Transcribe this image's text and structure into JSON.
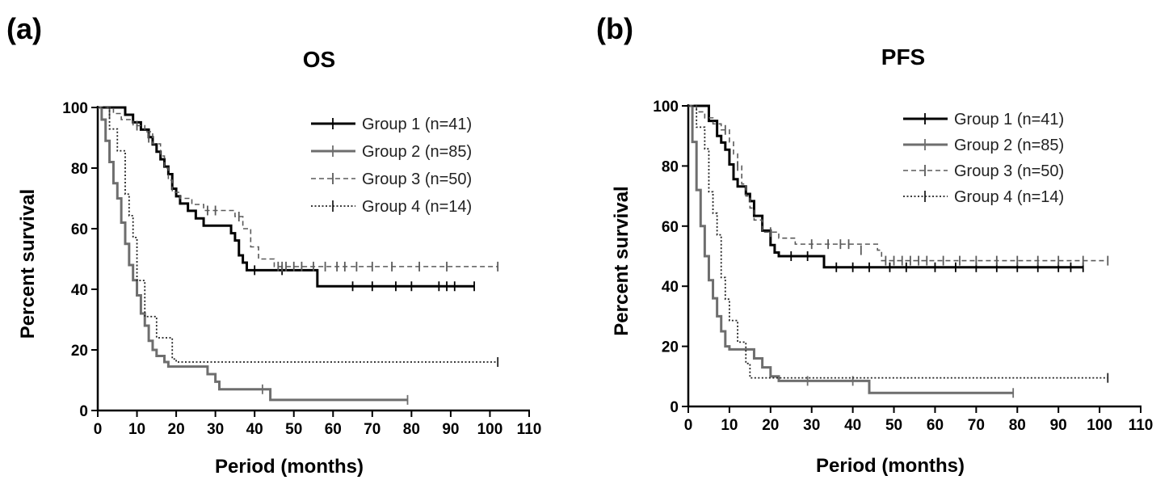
{
  "chart_data": [
    {
      "type": "line",
      "panel_label": "(a)",
      "title": "OS",
      "xlabel": "Period (months)",
      "ylabel": "Percent survival",
      "xlim": [
        0,
        110
      ],
      "ylim": [
        0,
        100
      ],
      "xticks": [
        0,
        10,
        20,
        30,
        40,
        50,
        60,
        70,
        80,
        90,
        100,
        110
      ],
      "yticks": [
        0,
        20,
        40,
        60,
        80,
        100
      ],
      "legend": "top-right",
      "series": [
        {
          "name": "Group 1 (n=41)",
          "color": "#000000",
          "style": "solid-thick",
          "points": [
            [
              0,
              100
            ],
            [
              5,
              100
            ],
            [
              7,
              97.6
            ],
            [
              9,
              95.1
            ],
            [
              11,
              92.7
            ],
            [
              13,
              90.2
            ],
            [
              14,
              87.8
            ],
            [
              15,
              85.4
            ],
            [
              16,
              82.9
            ],
            [
              17,
              80.5
            ],
            [
              18,
              78
            ],
            [
              19,
              73.2
            ],
            [
              20,
              70.7
            ],
            [
              21,
              68.3
            ],
            [
              23,
              65.9
            ],
            [
              25,
              63.4
            ],
            [
              27,
              61
            ],
            [
              33,
              61
            ],
            [
              34,
              58.5
            ],
            [
              35,
              56.1
            ],
            [
              36,
              51.2
            ],
            [
              37,
              48.8
            ],
            [
              38,
              46.3
            ],
            [
              55,
              46.3
            ],
            [
              56,
              41
            ],
            [
              96,
              41
            ]
          ],
          "censored": [
            [
              40,
              46.3
            ],
            [
              47,
              46.3
            ],
            [
              65,
              41
            ],
            [
              70,
              41
            ],
            [
              76,
              41
            ],
            [
              80,
              41
            ],
            [
              87,
              41
            ],
            [
              89,
              41
            ],
            [
              91,
              41
            ],
            [
              96,
              41
            ]
          ]
        },
        {
          "name": "Group 2 (n=85)",
          "color": "#6e6e6e",
          "style": "solid-thick",
          "points": [
            [
              0,
              100
            ],
            [
              1,
              96
            ],
            [
              2,
              89
            ],
            [
              3,
              82
            ],
            [
              4,
              75
            ],
            [
              5,
              70
            ],
            [
              6,
              62
            ],
            [
              7,
              55
            ],
            [
              8,
              48
            ],
            [
              9,
              43
            ],
            [
              10,
              38
            ],
            [
              11,
              32
            ],
            [
              12,
              28
            ],
            [
              13,
              23
            ],
            [
              14,
              20
            ],
            [
              15,
              18
            ],
            [
              17,
              16
            ],
            [
              18,
              14.5
            ],
            [
              27,
              14.5
            ],
            [
              28,
              12
            ],
            [
              30,
              9.5
            ],
            [
              31,
              7
            ],
            [
              43,
              7
            ],
            [
              44,
              3.5
            ],
            [
              79,
              3.5
            ]
          ],
          "censored": [
            [
              42,
              7
            ],
            [
              79,
              3.5
            ]
          ]
        },
        {
          "name": "Group 3 (n=50)",
          "color": "#5a5a5a",
          "style": "dashed",
          "points": [
            [
              0,
              100
            ],
            [
              4,
              98
            ],
            [
              6,
              96
            ],
            [
              9,
              94
            ],
            [
              12,
              92
            ],
            [
              14,
              88
            ],
            [
              16,
              84
            ],
            [
              17,
              80
            ],
            [
              18,
              76
            ],
            [
              19,
              72
            ],
            [
              21,
              70
            ],
            [
              24,
              68
            ],
            [
              27,
              66
            ],
            [
              33,
              66
            ],
            [
              35,
              64
            ],
            [
              37,
              60
            ],
            [
              39,
              54
            ],
            [
              41,
              50
            ],
            [
              45,
              47.5
            ],
            [
              102,
              47.5
            ]
          ],
          "censored": [
            [
              3,
              98
            ],
            [
              10,
              94
            ],
            [
              13,
              90
            ],
            [
              28,
              66
            ],
            [
              30,
              66
            ],
            [
              36,
              64
            ],
            [
              46,
              47.5
            ],
            [
              47,
              47.5
            ],
            [
              48,
              47.5
            ],
            [
              50,
              47.5
            ],
            [
              52,
              47.5
            ],
            [
              55,
              47.5
            ],
            [
              58,
              47.5
            ],
            [
              61,
              47.5
            ],
            [
              63,
              47.5
            ],
            [
              66,
              47.5
            ],
            [
              70,
              47.5
            ],
            [
              75,
              47.5
            ],
            [
              82,
              47.5
            ],
            [
              89,
              47.5
            ],
            [
              102,
              47.5
            ]
          ]
        },
        {
          "name": "Group 4 (n=14)",
          "color": "#222222",
          "style": "dotted",
          "points": [
            [
              0,
              100
            ],
            [
              3,
              92.9
            ],
            [
              5,
              85.7
            ],
            [
              7,
              71.4
            ],
            [
              8,
              64.3
            ],
            [
              9,
              57.1
            ],
            [
              10,
              42.9
            ],
            [
              12,
              31
            ],
            [
              15,
              24
            ],
            [
              19,
              17
            ],
            [
              20,
              16
            ],
            [
              102,
              16
            ]
          ],
          "censored": [
            [
              102,
              16
            ]
          ]
        }
      ]
    },
    {
      "type": "line",
      "panel_label": "(b)",
      "title": "PFS",
      "xlabel": "Period (months)",
      "ylabel": "Percent survival",
      "xlim": [
        0,
        110
      ],
      "ylim": [
        0,
        100
      ],
      "xticks": [
        0,
        10,
        20,
        30,
        40,
        50,
        60,
        70,
        80,
        90,
        100,
        110
      ],
      "yticks": [
        0,
        20,
        40,
        60,
        80,
        100
      ],
      "legend": "top-right",
      "series": [
        {
          "name": "Group 1 (n=41)",
          "color": "#000000",
          "style": "solid-thick",
          "points": [
            [
              0,
              100
            ],
            [
              3,
              100
            ],
            [
              5,
              95
            ],
            [
              7,
              90
            ],
            [
              8,
              87.8
            ],
            [
              9,
              85.4
            ],
            [
              10,
              80.5
            ],
            [
              11,
              75.6
            ],
            [
              12,
              73.2
            ],
            [
              14,
              70.7
            ],
            [
              15,
              68.3
            ],
            [
              16,
              63.4
            ],
            [
              18,
              58.5
            ],
            [
              20,
              53.7
            ],
            [
              21,
              51.2
            ],
            [
              22,
              50
            ],
            [
              31,
              50
            ],
            [
              33,
              46.3
            ],
            [
              96,
              46.3
            ]
          ],
          "censored": [
            [
              25,
              50
            ],
            [
              29,
              50
            ],
            [
              36,
              46.3
            ],
            [
              40,
              46.3
            ],
            [
              44,
              46.3
            ],
            [
              49,
              46.3
            ],
            [
              53,
              46.3
            ],
            [
              60,
              46.3
            ],
            [
              65,
              46.3
            ],
            [
              70,
              46.3
            ],
            [
              75,
              46.3
            ],
            [
              80,
              46.3
            ],
            [
              85,
              46.3
            ],
            [
              90,
              46.3
            ],
            [
              93,
              46.3
            ],
            [
              96,
              46.3
            ]
          ]
        },
        {
          "name": "Group 2 (n=85)",
          "color": "#6e6e6e",
          "style": "solid-thick",
          "points": [
            [
              0,
              100
            ],
            [
              1,
              88
            ],
            [
              2,
              72
            ],
            [
              3,
              60
            ],
            [
              4,
              50
            ],
            [
              5,
              42
            ],
            [
              6,
              36
            ],
            [
              7,
              30
            ],
            [
              8,
              25
            ],
            [
              9,
              20
            ],
            [
              10,
              19
            ],
            [
              15,
              19
            ],
            [
              16,
              16
            ],
            [
              18,
              13
            ],
            [
              20,
              10
            ],
            [
              22,
              8.5
            ],
            [
              43,
              8.5
            ],
            [
              44,
              4.5
            ],
            [
              79,
              4.5
            ]
          ],
          "censored": [
            [
              29,
              8.5
            ],
            [
              40,
              8.5
            ],
            [
              79,
              4.5
            ]
          ]
        },
        {
          "name": "Group 3 (n=50)",
          "color": "#5a5a5a",
          "style": "dashed",
          "points": [
            [
              0,
              100
            ],
            [
              2,
              98
            ],
            [
              4,
              96
            ],
            [
              6,
              94
            ],
            [
              8,
              92
            ],
            [
              10,
              88
            ],
            [
              11,
              84
            ],
            [
              12,
              80
            ],
            [
              13,
              74
            ],
            [
              14,
              70
            ],
            [
              15,
              66
            ],
            [
              16,
              62
            ],
            [
              18,
              58
            ],
            [
              22,
              56
            ],
            [
              26,
              54
            ],
            [
              46,
              52
            ],
            [
              47,
              48.5
            ],
            [
              102,
              48.5
            ]
          ],
          "censored": [
            [
              9,
              92
            ],
            [
              12,
              80
            ],
            [
              20,
              58
            ],
            [
              30,
              54
            ],
            [
              34,
              54
            ],
            [
              37,
              54
            ],
            [
              39,
              54
            ],
            [
              42,
              52
            ],
            [
              48,
              48.5
            ],
            [
              50,
              48.5
            ],
            [
              52,
              48.5
            ],
            [
              54,
              48.5
            ],
            [
              56,
              48.5
            ],
            [
              58,
              48.5
            ],
            [
              62,
              48.5
            ],
            [
              66,
              48.5
            ],
            [
              70,
              48.5
            ],
            [
              75,
              48.5
            ],
            [
              80,
              48.5
            ],
            [
              85,
              48.5
            ],
            [
              90,
              48.5
            ],
            [
              96,
              48.5
            ],
            [
              102,
              48.5
            ]
          ]
        },
        {
          "name": "Group 4 (n=14)",
          "color": "#222222",
          "style": "dotted",
          "points": [
            [
              0,
              100
            ],
            [
              2,
              92.9
            ],
            [
              4,
              85.7
            ],
            [
              5,
              71.4
            ],
            [
              6,
              64.3
            ],
            [
              7,
              57.1
            ],
            [
              8,
              42.9
            ],
            [
              9,
              35.7
            ],
            [
              10,
              28.6
            ],
            [
              12,
              21.4
            ],
            [
              14,
              14.3
            ],
            [
              15,
              9.5
            ],
            [
              102,
              9.5
            ]
          ],
          "censored": [
            [
              102,
              9.5
            ]
          ]
        }
      ]
    }
  ]
}
